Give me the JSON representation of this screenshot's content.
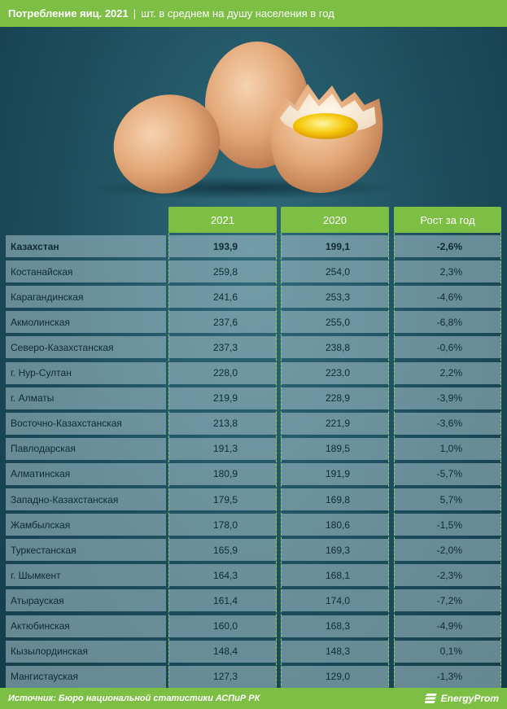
{
  "header": {
    "title": "Потребление яиц. 2021",
    "separator": "|",
    "subtitle": "шт. в среднем на душу населения в год"
  },
  "chart_data": {
    "type": "table",
    "columns": [
      "2021",
      "2020",
      "Рост за год"
    ],
    "rows": [
      {
        "name": "Казахстан",
        "v2021": "193,9",
        "v2020": "199,1",
        "growth": "-2,6%"
      },
      {
        "name": "Костанайская",
        "v2021": "259,8",
        "v2020": "254,0",
        "growth": "2,3%"
      },
      {
        "name": "Карагандинская",
        "v2021": "241,6",
        "v2020": "253,3",
        "growth": "-4,6%"
      },
      {
        "name": "Акмолинская",
        "v2021": "237,6",
        "v2020": "255,0",
        "growth": "-6,8%"
      },
      {
        "name": "Северо-Казахстанская",
        "v2021": "237,3",
        "v2020": "238,8",
        "growth": "-0,6%"
      },
      {
        "name": "г. Нур-Султан",
        "v2021": "228,0",
        "v2020": "223,0",
        "growth": "2,2%"
      },
      {
        "name": "г. Алматы",
        "v2021": "219,9",
        "v2020": "228,9",
        "growth": "-3,9%"
      },
      {
        "name": "Восточно-Казахстанская",
        "v2021": "213,8",
        "v2020": "221,9",
        "growth": "-3,6%"
      },
      {
        "name": "Павлодарская",
        "v2021": "191,3",
        "v2020": "189,5",
        "growth": "1,0%"
      },
      {
        "name": "Алматинская",
        "v2021": "180,9",
        "v2020": "191,9",
        "growth": "-5,7%"
      },
      {
        "name": "Западно-Казахстанская",
        "v2021": "179,5",
        "v2020": "169,8",
        "growth": "5,7%"
      },
      {
        "name": "Жамбылская",
        "v2021": "178,0",
        "v2020": "180,6",
        "growth": "-1,5%"
      },
      {
        "name": "Туркестанская",
        "v2021": "165,9",
        "v2020": "169,3",
        "growth": "-2,0%"
      },
      {
        "name": "г. Шымкент",
        "v2021": "164,3",
        "v2020": "168,1",
        "growth": "-2,3%"
      },
      {
        "name": "Атырауская",
        "v2021": "161,4",
        "v2020": "174,0",
        "growth": "-7,2%"
      },
      {
        "name": "Актюбинская",
        "v2021": "160,0",
        "v2020": "168,3",
        "growth": "-4,9%"
      },
      {
        "name": "Кызылординская",
        "v2021": "148,4",
        "v2020": "148,3",
        "growth": "0,1%"
      },
      {
        "name": "Мангистауская",
        "v2021": "127,3",
        "v2020": "129,0",
        "growth": "-1,3%"
      }
    ]
  },
  "footer": {
    "source": "Источник: Бюро национальной статистики АСПиР РК",
    "brand": "EnergyProm"
  },
  "colors": {
    "accent": "#7dbf45",
    "background": "#1d4d5c",
    "row": "#9fbcc4"
  }
}
